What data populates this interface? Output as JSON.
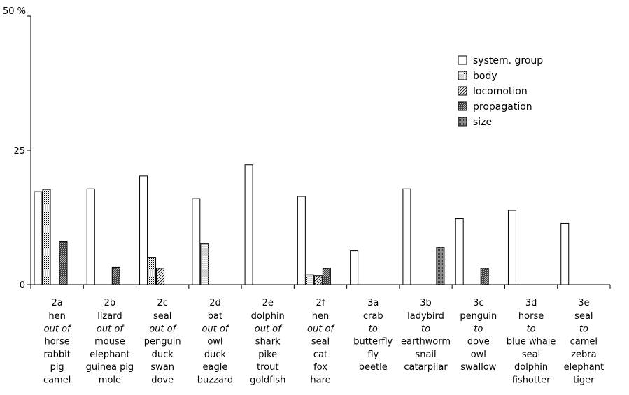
{
  "chart_data": {
    "type": "bar",
    "title": "",
    "xlabel": "",
    "ylabel": "",
    "ylim": [
      0,
      50
    ],
    "yticks": [
      "0",
      "25",
      "50 %"
    ],
    "ytick_values": [
      0,
      25,
      50
    ],
    "grid": false,
    "legend_position": "top-right",
    "categories": [
      {
        "code": "2a",
        "lines": [
          "hen",
          "out of",
          "horse",
          "rabbit",
          "pig",
          "camel"
        ]
      },
      {
        "code": "2b",
        "lines": [
          "lizard",
          "out of",
          "mouse",
          "elephant",
          "guinea pig",
          "mole"
        ]
      },
      {
        "code": "2c",
        "lines": [
          "seal",
          "out of",
          "penguin",
          "duck",
          "swan",
          "dove"
        ]
      },
      {
        "code": "2d",
        "lines": [
          "bat",
          "out of",
          "owl",
          "duck",
          "eagle",
          "buzzard"
        ]
      },
      {
        "code": "2e",
        "lines": [
          "dolphin",
          "out of",
          "shark",
          "pike",
          "trout",
          "goldfish"
        ]
      },
      {
        "code": "2f",
        "lines": [
          "hen",
          "out of",
          "seal",
          "cat",
          "fox",
          "hare"
        ]
      },
      {
        "code": "3a",
        "lines": [
          "crab",
          "to",
          "butterfly",
          "fly",
          "beetle"
        ]
      },
      {
        "code": "3b",
        "lines": [
          "ladybird",
          "to",
          "earthworm",
          "snail",
          "catarpilar"
        ]
      },
      {
        "code": "3c",
        "lines": [
          "penguin",
          "to",
          "dove",
          "owl",
          "swallow"
        ]
      },
      {
        "code": "3d",
        "lines": [
          "horse",
          "to",
          "blue whale",
          "seal",
          "dolphin",
          "fishotter"
        ]
      },
      {
        "code": "3e",
        "lines": [
          "seal",
          "to",
          "camel",
          "zebra",
          "elephant",
          "tiger"
        ]
      }
    ],
    "series": [
      {
        "name": "system. group",
        "pattern": "none",
        "values": [
          17.3,
          17.8,
          20.2,
          16.0,
          22.3,
          16.4,
          6.3,
          17.8,
          12.3,
          13.8,
          11.4
        ]
      },
      {
        "name": "body",
        "pattern": "dots",
        "values": [
          17.7,
          0,
          5.0,
          7.6,
          0,
          1.8,
          0,
          0,
          0,
          0,
          0
        ]
      },
      {
        "name": "locomotion",
        "pattern": "hatch",
        "values": [
          0,
          0,
          3.0,
          0,
          0,
          1.6,
          0,
          0,
          0,
          0,
          0
        ]
      },
      {
        "name": "propagation",
        "pattern": "dense",
        "values": [
          8.0,
          3.2,
          0,
          0,
          0,
          3.0,
          0,
          0,
          3.0,
          0,
          0
        ]
      },
      {
        "name": "size",
        "pattern": "stipple",
        "values": [
          0,
          0,
          0,
          0,
          0,
          0,
          0,
          6.9,
          0,
          0,
          0
        ]
      }
    ]
  }
}
